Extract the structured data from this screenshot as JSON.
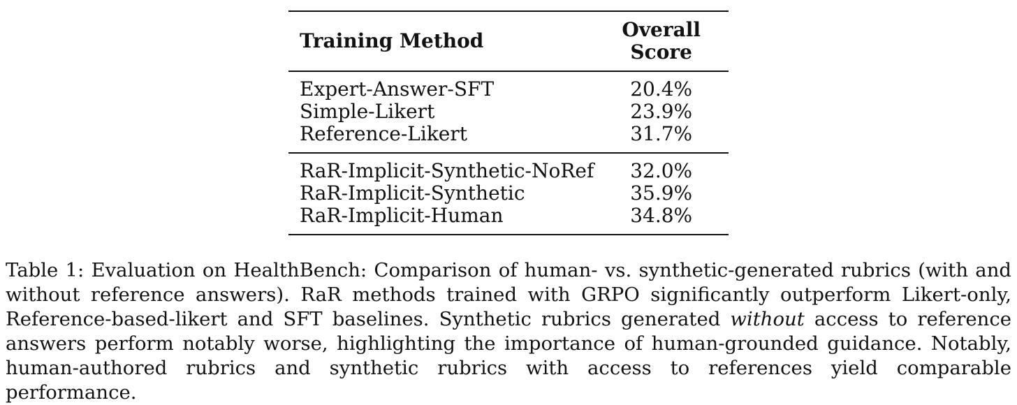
{
  "table": {
    "headers": {
      "method": "Training Method",
      "score": "Overall Score"
    },
    "group1": [
      {
        "method": "Expert-Answer-SFT",
        "score": "20.4%"
      },
      {
        "method": "Simple-Likert",
        "score": "23.9%"
      },
      {
        "method": "Reference-Likert",
        "score": "31.7%"
      }
    ],
    "group2": [
      {
        "method": "RaR-Implicit-Synthetic-NoRef",
        "score": "32.0%"
      },
      {
        "method": "RaR-Implicit-Synthetic",
        "score": "35.9%"
      },
      {
        "method": "RaR-Implicit-Human",
        "score": "34.8%"
      }
    ]
  },
  "caption": {
    "label": "Table 1:",
    "before_italic": " Evaluation on HealthBench: Comparison of human- vs. synthetic-generated rubrics (with and without reference answers). RaR methods trained with GRPO significantly outperform Likert-only, Reference-based-likert and SFT baselines. Synthetic rubrics generated ",
    "italic_word": "without",
    "after_italic": " access to reference answers perform notably worse, highlighting the importance of human-grounded guidance. Notably, human-authored rubrics and synthetic rubrics with access to references yield comparable performance."
  },
  "colors": {
    "text": "#121212",
    "rule": "#121212",
    "background": "#ffffff"
  }
}
